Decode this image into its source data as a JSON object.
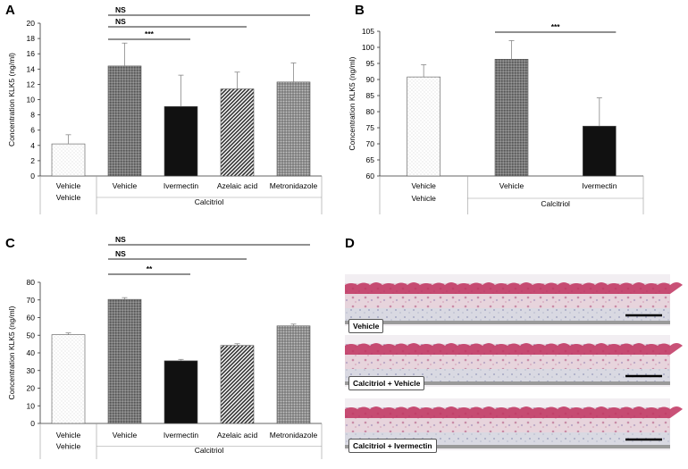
{
  "chart_data": [
    {
      "panel": "A",
      "type": "bar",
      "ylabel": "Concentration KLK5 (ng/ml)",
      "ylim": [
        0,
        20
      ],
      "yticks": [
        0,
        2,
        4,
        6,
        8,
        10,
        12,
        14,
        16,
        18,
        20
      ],
      "categories": [
        "Vehicle",
        "Vehicle",
        "Ivermectin",
        "Azelaic acid",
        "Metronidazole"
      ],
      "groups": [
        {
          "label": "Vehicle",
          "span": [
            0,
            0
          ]
        },
        {
          "label": "Calcitriol",
          "span": [
            1,
            4
          ]
        }
      ],
      "values": [
        4.2,
        14.4,
        9.1,
        11.4,
        12.3
      ],
      "errors": [
        1.2,
        3.0,
        4.1,
        2.2,
        2.5
      ],
      "fills": [
        "dots",
        "grid",
        "black",
        "diag",
        "dense"
      ],
      "comparisons": [
        {
          "from": 1,
          "to": 2,
          "label": "***"
        },
        {
          "from": 1,
          "to": 3,
          "label": "NS"
        },
        {
          "from": 1,
          "to": 4,
          "label": "NS"
        }
      ]
    },
    {
      "panel": "B",
      "type": "bar",
      "ylabel": "Concentration KLK5 (ng/ml)",
      "ylim": [
        60,
        105
      ],
      "yticks": [
        60,
        65,
        70,
        75,
        80,
        85,
        90,
        95,
        100,
        105
      ],
      "categories": [
        "Vehicle",
        "Vehicle",
        "Ivermectin"
      ],
      "groups": [
        {
          "label": "Vehicle",
          "span": [
            0,
            0
          ]
        },
        {
          "label": "Calcitriol",
          "span": [
            1,
            2
          ]
        }
      ],
      "values": [
        90.8,
        96.3,
        75.5
      ],
      "errors": [
        3.8,
        5.8,
        8.8
      ],
      "fills": [
        "dots",
        "grid",
        "black"
      ],
      "comparisons": [
        {
          "from": 1,
          "to": 2,
          "label": "***"
        }
      ]
    },
    {
      "panel": "C",
      "type": "bar",
      "ylabel": "Concentration KLK5 (ng/ml)",
      "ylim": [
        0,
        80
      ],
      "yticks": [
        0,
        10,
        20,
        30,
        40,
        50,
        60,
        70,
        80
      ],
      "categories": [
        "Vehicle",
        "Vehicle",
        "Ivermectin",
        "Azelaic acid",
        "Metronidazole"
      ],
      "groups": [
        {
          "label": "Vehicle",
          "span": [
            0,
            0
          ]
        },
        {
          "label": "Calcitriol",
          "span": [
            1,
            4
          ]
        }
      ],
      "values": [
        50.3,
        70.3,
        35.5,
        44.2,
        55.3
      ],
      "errors": [
        1.0,
        1.0,
        0.8,
        1.0,
        1.0
      ],
      "fills": [
        "dots",
        "grid",
        "black",
        "diag",
        "dense"
      ],
      "comparisons": [
        {
          "from": 1,
          "to": 2,
          "label": "**"
        },
        {
          "from": 1,
          "to": 3,
          "label": "NS"
        },
        {
          "from": 1,
          "to": 4,
          "label": "NS"
        }
      ]
    }
  ],
  "histology": {
    "panel": "D",
    "images": [
      {
        "label": "Vehicle"
      },
      {
        "label": "Calcitriol + Vehicle"
      },
      {
        "label": "Calcitriol + Ivermectin"
      }
    ]
  }
}
